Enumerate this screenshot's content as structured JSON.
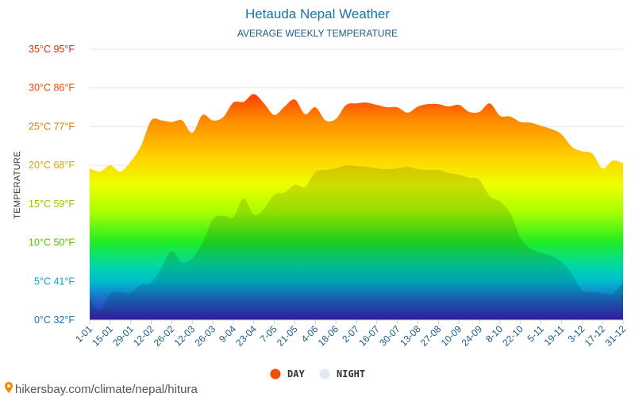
{
  "chart_data": {
    "type": "area",
    "title": "Hetauda Nepal Weather",
    "subtitle": "AVERAGE WEEKLY TEMPERATURE",
    "ylabel": "TEMPERATURE",
    "ylim": [
      0,
      35
    ],
    "y_ticks": [
      {
        "value": 0,
        "label": "0°C 32°F",
        "color": "#1f6fbf"
      },
      {
        "value": 5,
        "label": "5°C 41°F",
        "color": "#00a8c8"
      },
      {
        "value": 10,
        "label": "10°C 50°F",
        "color": "#55c200"
      },
      {
        "value": 15,
        "label": "15°C 59°F",
        "color": "#9bc400"
      },
      {
        "value": 20,
        "label": "20°C 68°F",
        "color": "#d9a800"
      },
      {
        "value": 25,
        "label": "25°C 77°F",
        "color": "#e87a00"
      },
      {
        "value": 30,
        "label": "30°C 86°F",
        "color": "#e84e00"
      },
      {
        "value": 35,
        "label": "35°C 95°F",
        "color": "#e02a00"
      }
    ],
    "x_tick_labels": [
      "1-01",
      "15-01",
      "29-01",
      "12-02",
      "26-02",
      "12-03",
      "26-03",
      "9-04",
      "23-04",
      "7-05",
      "21-05",
      "4-06",
      "18-06",
      "2-07",
      "16-07",
      "30-07",
      "13-08",
      "27-08",
      "10-09",
      "24-09",
      "8-10",
      "22-10",
      "5-11",
      "19-11",
      "3-12",
      "17-12",
      "31-12"
    ],
    "x": [
      0,
      0.5,
      1,
      1.5,
      2,
      2.5,
      3,
      3.5,
      4,
      4.5,
      5,
      5.5,
      6,
      6.5,
      7,
      7.5,
      8,
      8.5,
      9,
      9.5,
      10,
      10.5,
      11,
      11.5,
      12,
      12.5,
      13,
      13.5,
      14,
      14.5,
      15,
      15.5,
      16,
      16.5,
      17,
      17.5,
      18,
      18.5,
      19,
      19.5,
      20,
      20.5,
      21,
      21.5,
      22,
      22.5,
      23,
      23.5,
      24,
      24.5,
      25,
      25.5,
      26
    ],
    "series": [
      {
        "name": "DAY",
        "color": "#f04e00",
        "values": [
          19.6,
          19.2,
          20.0,
          19.2,
          20.5,
          22.5,
          25.8,
          25.8,
          25.6,
          25.8,
          24.2,
          26.5,
          25.8,
          26.2,
          28.1,
          28.2,
          29.2,
          28.0,
          26.5,
          27.6,
          28.5,
          26.6,
          27.5,
          25.8,
          26.0,
          27.8,
          28.0,
          28.1,
          27.8,
          27.5,
          27.5,
          26.8,
          27.6,
          27.9,
          27.9,
          27.6,
          27.8,
          26.9,
          26.9,
          28.0,
          26.4,
          26.3,
          25.6,
          25.5,
          25.1,
          24.7,
          24.0,
          22.4,
          21.8,
          21.5,
          19.6,
          20.6,
          20.3
        ]
      },
      {
        "name": "NIGHT",
        "color": "#e0eaf2",
        "values": [
          2.8,
          1.2,
          3.4,
          3.6,
          3.5,
          4.6,
          4.8,
          6.8,
          8.9,
          7.4,
          8.0,
          10.0,
          13.0,
          13.5,
          13.3,
          15.7,
          13.6,
          14.4,
          16.2,
          16.5,
          17.5,
          17.2,
          19.1,
          19.4,
          19.6,
          20.0,
          19.9,
          19.8,
          19.6,
          19.5,
          19.6,
          19.8,
          19.5,
          19.4,
          19.4,
          19.0,
          18.8,
          18.4,
          18.1,
          16.0,
          15.3,
          13.8,
          10.6,
          9.2,
          8.7,
          8.3,
          7.5,
          6.0,
          3.8,
          3.6,
          3.5,
          3.4,
          4.9
        ]
      }
    ],
    "legend_placement": "bottom-center",
    "grid": true
  },
  "legend": {
    "day_label": "DAY",
    "night_label": "NIGHT",
    "day_color": "#f04e00",
    "night_color": "#e0eaf2"
  },
  "watermark": {
    "text": "hikersbay.com/climate/nepal/hitura",
    "icon": "map-pin-icon"
  }
}
